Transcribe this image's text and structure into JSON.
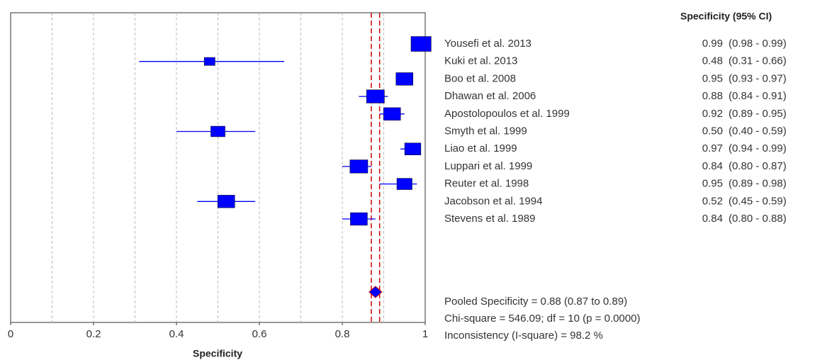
{
  "chart_data": {
    "type": "forest",
    "column_header": "Specificity (95% CI)",
    "x_label": "Specificity",
    "categories": [
      "Yousefi et al. 2013",
      "Kuki et al. 2013",
      "Boo et al. 2008",
      "Dhawan et al. 2006",
      "Apostolopoulos et al. 1999",
      "Smyth et al. 1999",
      "Liao et al. 1999",
      "Luppari et al. 1999",
      "Reuter et al. 1998",
      "Jacobson et al. 1994",
      "Stevens et al. 1989"
    ],
    "values": [
      0.99,
      0.48,
      0.95,
      0.88,
      0.92,
      0.5,
      0.97,
      0.84,
      0.95,
      0.52,
      0.84
    ],
    "value_labels": [
      "0.99",
      "0.48",
      "0.95",
      "0.88",
      "0.92",
      "0.50",
      "0.97",
      "0.84",
      "0.95",
      "0.52",
      "0.84"
    ],
    "lower": [
      0.98,
      0.31,
      0.93,
      0.84,
      0.89,
      0.4,
      0.94,
      0.8,
      0.89,
      0.45,
      0.8
    ],
    "upper": [
      0.99,
      0.66,
      0.97,
      0.91,
      0.95,
      0.59,
      0.99,
      0.87,
      0.98,
      0.59,
      0.88
    ],
    "ci_labels": [
      "(0.98 - 0.99)",
      "(0.31 - 0.66)",
      "(0.93 - 0.97)",
      "(0.84 - 0.91)",
      "(0.89 - 0.95)",
      "(0.40 - 0.59)",
      "(0.94 - 0.99)",
      "(0.80 - 0.87)",
      "(0.89 - 0.98)",
      "(0.45 - 0.59)",
      "(0.80 - 0.88)"
    ],
    "weights": [
      14,
      4,
      10,
      11,
      10,
      7,
      9,
      11,
      8,
      10,
      10
    ],
    "pooled": {
      "value": 0.88,
      "lower": 0.87,
      "upper": 0.89
    },
    "stats": [
      "Pooled Specificity = 0.88 (0.87 to 0.89)",
      "Chi-square = 546.09; df =  10 (p = 0.0000)",
      "Inconsistency (I-square) = 98.2 %"
    ],
    "color": "#0000ff",
    "pooled_color": "#cc0000",
    "xlim": [
      0,
      1
    ],
    "xticks": [
      0,
      0.2,
      0.4,
      0.6,
      0.8,
      1
    ],
    "xgrid": [
      0.1,
      0.2,
      0.3,
      0.4,
      0.5,
      0.6,
      0.7,
      0.8,
      0.9
    ],
    "grid": true
  }
}
